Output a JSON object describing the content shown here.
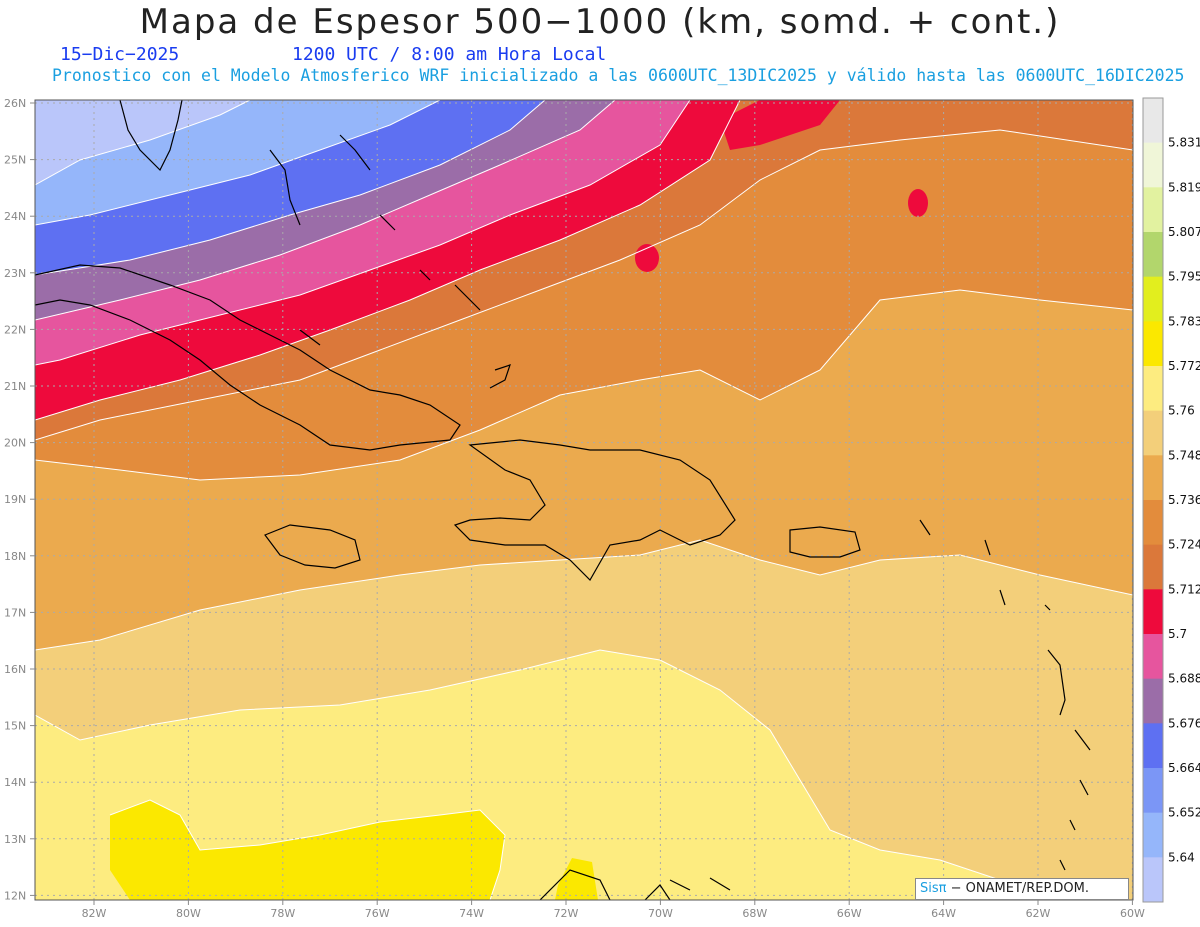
{
  "title": "Mapa de Espesor 500−1000 (km, somd. + cont.)",
  "date": "15−Dic−2025",
  "valid_time": "1200 UTC / 8:00 am Hora Local",
  "subtitle": "Pronostico con el Modelo Atmosferico WRF inicializado a las 0600UTC_13DIC2025 y válido hasta las  0600UTC_16DIC2025",
  "credit": {
    "brand": "Sisπ",
    "rest": " − ONAMET/REP.DOM."
  },
  "lat_labels": [
    "26N",
    "25N",
    "24N",
    "23N",
    "22N",
    "21N",
    "20N",
    "19N",
    "18N",
    "17N",
    "16N",
    "15N",
    "14N",
    "13N",
    "12N"
  ],
  "lon_labels": [
    "82W",
    "80W",
    "78W",
    "76W",
    "74W",
    "72W",
    "70W",
    "68W",
    "66W",
    "64W",
    "62W",
    "60W"
  ],
  "colorbar": {
    "labels": [
      "5.831",
      "5.819",
      "5.807",
      "5.795",
      "5.783",
      "5.772",
      "5.76",
      "5.748",
      "5.736",
      "5.724",
      "5.712",
      "5.7",
      "5.688",
      "5.676",
      "5.664",
      "5.652",
      "5.64"
    ],
    "colors": [
      "#e8e8e8",
      "#f0f6d8",
      "#e2f2a0",
      "#b2d66c",
      "#e2ee1e",
      "#fbe800",
      "#fdec80",
      "#f3cf7a",
      "#ebaa4e",
      "#e38c3c",
      "#db783a",
      "#ee0a3c",
      "#e6559e",
      "#9b6da8",
      "#5e70f2",
      "#7b96f6",
      "#95b6fa",
      "#bac6fa"
    ]
  },
  "map_colors": {
    "c5640": "#bac6fa",
    "c5652": "#95b6fa",
    "c5664": "#5e70f2",
    "c5676": "#9b6da8",
    "c5688": "#e6559e",
    "c5700": "#ee0a3c",
    "c5712": "#db783a",
    "c5724": "#e38c3c",
    "c5736": "#ebaa4e",
    "c5748": "#f3cf7a",
    "c5760": "#fdec80",
    "c5772": "#fbe800"
  }
}
